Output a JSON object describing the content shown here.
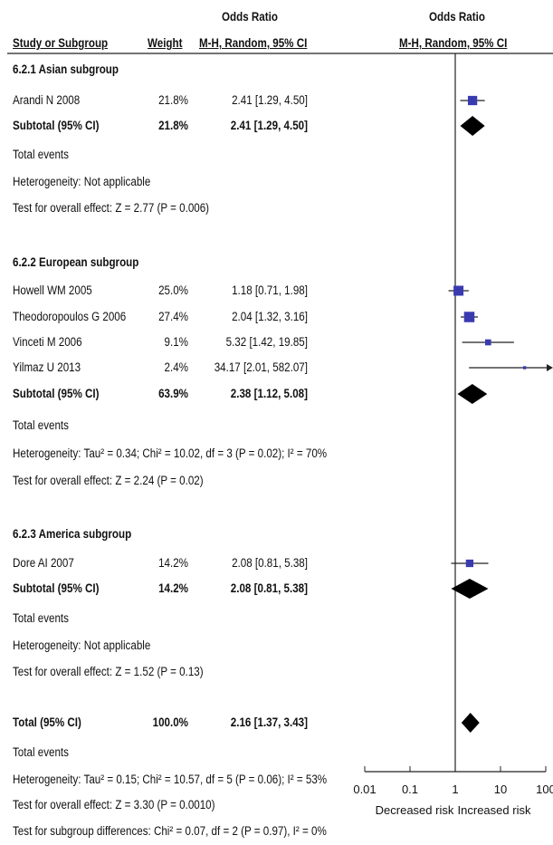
{
  "header": {
    "col_study": "Study or Subgroup",
    "col_weight": "Weight",
    "col_or_group": "Odds Ratio",
    "col_or_method": "M-H, Random, 95% CI",
    "col_plot_group": "Odds Ratio",
    "col_plot_method": "M-H, Random, 95% CI"
  },
  "groups": [
    {
      "title": "6.2.1 Asian subgroup",
      "studies": [
        {
          "name": "Arandi N 2008",
          "weight": "21.8%",
          "ci_text": "2.41 [1.29, 4.50]"
        }
      ],
      "subtotal": {
        "label": "Subtotal (95% CI)",
        "weight": "21.8%",
        "ci_text": "2.41 [1.29, 4.50]"
      },
      "total_events": "Total events",
      "heterogeneity": "Heterogeneity: Not applicable",
      "overall": "Test for overall effect: Z = 2.77 (P = 0.006)"
    },
    {
      "title": "6.2.2 European subgroup",
      "studies": [
        {
          "name": "Howell WM 2005",
          "weight": "25.0%",
          "ci_text": "1.18 [0.71, 1.98]"
        },
        {
          "name": "Theodoropoulos G 2006",
          "weight": "27.4%",
          "ci_text": "2.04 [1.32, 3.16]"
        },
        {
          "name": "Vinceti M 2006",
          "weight": "9.1%",
          "ci_text": "5.32 [1.42, 19.85]"
        },
        {
          "name": "Yilmaz U 2013",
          "weight": "2.4%",
          "ci_text": "34.17 [2.01, 582.07]"
        }
      ],
      "subtotal": {
        "label": "Subtotal (95% CI)",
        "weight": "63.9%",
        "ci_text": "2.38 [1.12, 5.08]"
      },
      "total_events": "Total events",
      "heterogeneity": "Heterogeneity: Tau² = 0.34; Chi² = 10.02, df = 3 (P = 0.02); I² = 70%",
      "overall": "Test for overall effect: Z = 2.24 (P = 0.02)"
    },
    {
      "title": "6.2.3 America subgroup",
      "studies": [
        {
          "name": "Dore AI 2007",
          "weight": "14.2%",
          "ci_text": "2.08 [0.81, 5.38]"
        }
      ],
      "subtotal": {
        "label": "Subtotal (95% CI)",
        "weight": "14.2%",
        "ci_text": "2.08 [0.81, 5.38]"
      },
      "total_events": "Total events",
      "heterogeneity": "Heterogeneity: Not applicable",
      "overall": "Test for overall effect: Z = 1.52 (P = 0.13)"
    }
  ],
  "total": {
    "label": "Total (95% CI)",
    "weight": "100.0%",
    "ci_text": "2.16 [1.37, 3.43]",
    "total_events": "Total events",
    "heterogeneity": "Heterogeneity: Tau² = 0.15; Chi² = 10.57, df = 5 (P = 0.06); I² = 53%",
    "overall": "Test for overall effect: Z = 3.30 (P = 0.0010)",
    "subgroup_diff": "Test for subgroup differences: Chi² = 0.07, df = 2 (P = 0.97), I² = 0%"
  },
  "chart_data": {
    "type": "scatter",
    "xscale": "log",
    "xlim": [
      0.01,
      100
    ],
    "xticks": [
      "0.01",
      "0.1",
      "1",
      "10",
      "100"
    ],
    "xtick_values": [
      0.01,
      0.1,
      1,
      10,
      100
    ],
    "left_label": "Decreased risk",
    "right_label": "Increased risk",
    "null_line": 1,
    "marker_color": "#3a3ab0",
    "studies": [
      {
        "name": "Arandi N 2008",
        "or": 2.41,
        "lo": 1.29,
        "hi": 4.5,
        "weight": 21.8
      },
      {
        "name": "Howell WM 2005",
        "or": 1.18,
        "lo": 0.71,
        "hi": 1.98,
        "weight": 25.0
      },
      {
        "name": "Theodoropoulos G 2006",
        "or": 2.04,
        "lo": 1.32,
        "hi": 3.16,
        "weight": 27.4
      },
      {
        "name": "Vinceti M 2006",
        "or": 5.32,
        "lo": 1.42,
        "hi": 19.85,
        "weight": 9.1
      },
      {
        "name": "Yilmaz U 2013",
        "or": 34.17,
        "lo": 2.01,
        "hi": 582.07,
        "weight": 2.4
      },
      {
        "name": "Dore AI 2007",
        "or": 2.08,
        "lo": 0.81,
        "hi": 5.38,
        "weight": 14.2
      }
    ],
    "diamonds": [
      {
        "name": "Asian subtotal",
        "or": 2.41,
        "lo": 1.29,
        "hi": 4.5
      },
      {
        "name": "European subtotal",
        "or": 2.38,
        "lo": 1.12,
        "hi": 5.08
      },
      {
        "name": "America subtotal",
        "or": 2.08,
        "lo": 0.81,
        "hi": 5.38
      },
      {
        "name": "Total",
        "or": 2.16,
        "lo": 1.37,
        "hi": 3.43
      }
    ]
  }
}
